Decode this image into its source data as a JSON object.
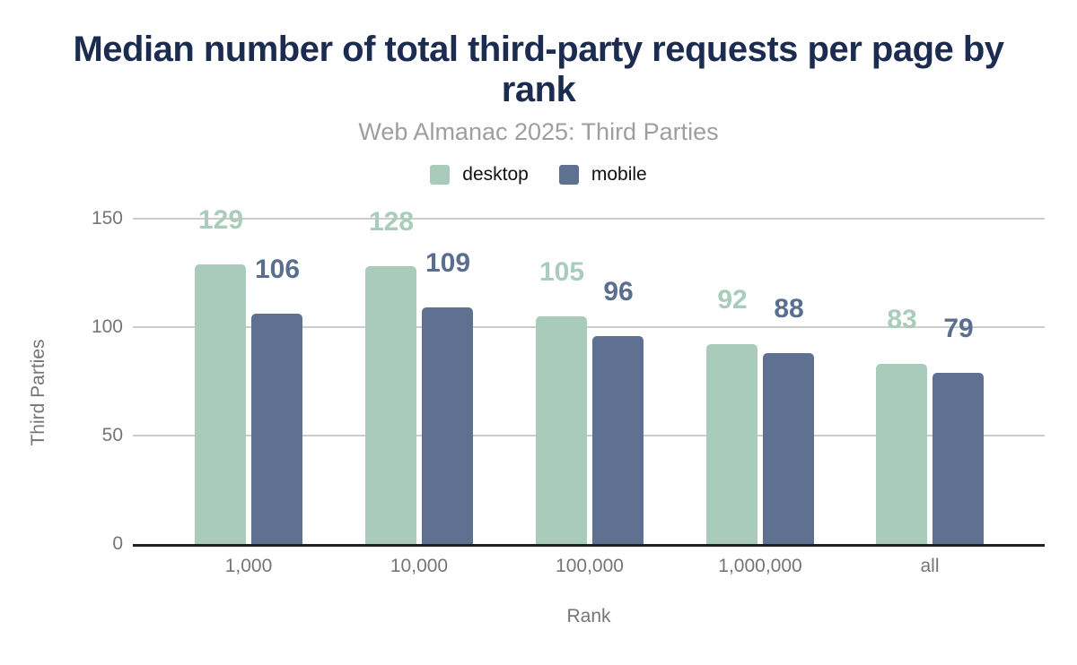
{
  "title": "Median number of total third-party requests per page by rank",
  "subtitle": "Web Almanac 2025: Third Parties",
  "legend": [
    {
      "label": "desktop",
      "color": "#a9cbbb"
    },
    {
      "label": "mobile",
      "color": "#5f7190"
    }
  ],
  "colors": {
    "title": "#1c2c50",
    "subtitle": "#9e9e9e",
    "axis_text": "#757575",
    "gridline": "#cccccc",
    "baseline": "#212121",
    "desktop": "#a9cbbb",
    "mobile": "#5f7190",
    "desktop_label": "#a9ccbc",
    "mobile_label": "#5a6e8f"
  },
  "chart_data": {
    "type": "bar",
    "categories": [
      "1,000",
      "10,000",
      "100,000",
      "1,000,000",
      "all"
    ],
    "series": [
      {
        "name": "desktop",
        "color": "#a9cbbb",
        "label_color": "#a9ccbc",
        "values": [
          129,
          128,
          105,
          92,
          83
        ]
      },
      {
        "name": "mobile",
        "color": "#5f7190",
        "label_color": "#5a6e8f",
        "values": [
          106,
          109,
          96,
          88,
          79
        ]
      }
    ],
    "title": "Median number of total third-party requests per page by rank",
    "subtitle": "Web Almanac 2025: Third Parties",
    "xlabel": "Rank",
    "ylabel": "Third Parties",
    "yticks": [
      0,
      50,
      100,
      150
    ],
    "ylim": [
      0,
      150
    ],
    "grid": "horizontal",
    "legend_position": "top",
    "data_labels": true
  }
}
